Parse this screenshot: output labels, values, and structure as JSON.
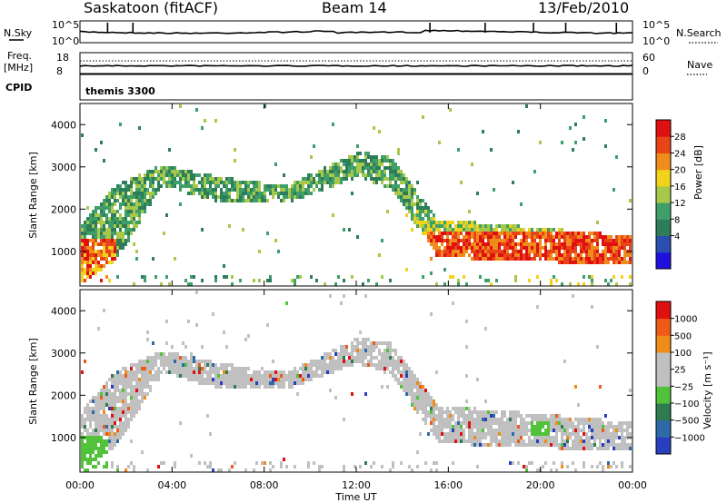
{
  "header": {
    "station": "Saskatoon (fitACF)",
    "beam": "Beam 14",
    "date": "13/Feb/2010"
  },
  "top_panels": {
    "nsky_label": "N.Sky",
    "nsky_ticks": [
      "10^5",
      "10^0"
    ],
    "nsearch_label": "N.Search",
    "nsearch_ticks": [
      "10^5",
      "10^0"
    ],
    "freq_label": "Freq.",
    "freq_unit": "[MHz]",
    "freq_ticks": [
      "18",
      "8"
    ],
    "nave_label": "Nave",
    "nave_ticks": [
      "60",
      "0"
    ],
    "cpid_label": "CPID",
    "cpid_value": "themis 3300"
  },
  "colors": {
    "power_scale": [
      "#1f10e0",
      "#2a4fb0",
      "#2e7d5a",
      "#3f9f68",
      "#a8c84a",
      "#f2d21a",
      "#f08c1c",
      "#e94418",
      "#e01010"
    ],
    "velocity_scale": [
      "#2a3fc0",
      "#2c6aa8",
      "#2d7d50",
      "#52c23a",
      "#c0c0c0",
      "#c0c0c0",
      "#f08a18",
      "#f05a18",
      "#e01010"
    ]
  },
  "chart_data": [
    {
      "type": "heatmap",
      "name": "Power panel",
      "ylabel": "Slant Range [km]",
      "yticks": [
        "4000",
        "3000",
        "2000",
        "1000"
      ],
      "colorbar_label": "Power [dB]",
      "colorbar_ticks": [
        "28",
        "24",
        "20",
        "16",
        "12",
        "8",
        "4"
      ],
      "ylim": [
        180,
        4500
      ],
      "xlim": [
        0,
        24
      ],
      "scatter_band": [
        {
          "t": 0.0,
          "lower": 300,
          "upper": 1700
        },
        {
          "t": 1.5,
          "lower": 800,
          "upper": 2600
        },
        {
          "t": 3.5,
          "lower": 2600,
          "upper": 3100
        },
        {
          "t": 6.0,
          "lower": 2200,
          "upper": 2800
        },
        {
          "t": 9.0,
          "lower": 2200,
          "upper": 2600
        },
        {
          "t": 12.0,
          "lower": 2800,
          "upper": 3400
        },
        {
          "t": 13.5,
          "lower": 2500,
          "upper": 3300
        },
        {
          "t": 15.5,
          "lower": 900,
          "upper": 1800
        },
        {
          "t": 20.0,
          "lower": 800,
          "upper": 1600
        },
        {
          "t": 24.0,
          "lower": 700,
          "upper": 1400
        }
      ]
    },
    {
      "type": "heatmap",
      "name": "Velocity panel",
      "ylabel": "Slant Range [km]",
      "yticks": [
        "4000",
        "3000",
        "2000",
        "1000"
      ],
      "colorbar_label": "Velocity [m s⁻¹]",
      "colorbar_ticks": [
        "1000",
        "500",
        "100",
        "25",
        "−25",
        "−100",
        "−500",
        "−1000"
      ],
      "ylim": [
        180,
        4500
      ],
      "xlim": [
        0,
        24
      ],
      "xlabel": "Time UT",
      "xticks": [
        "00:00",
        "04:00",
        "08:00",
        "12:00",
        "16:00",
        "20:00",
        "00:00"
      ]
    }
  ]
}
